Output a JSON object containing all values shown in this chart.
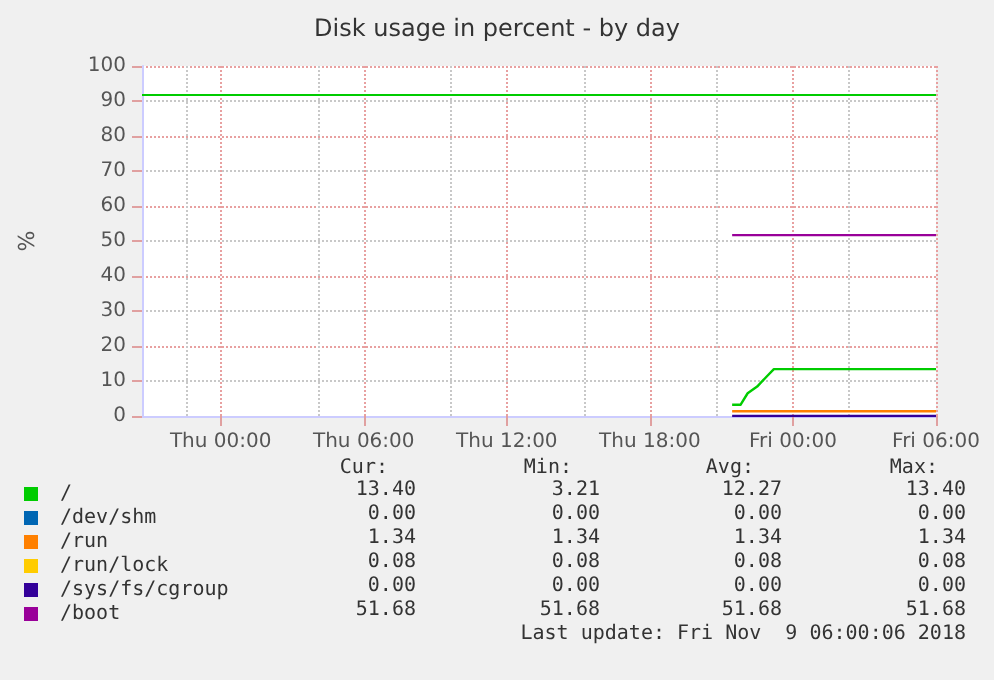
{
  "chart_data": {
    "type": "line",
    "title": "Disk usage in percent - by day",
    "ylabel": "%",
    "xlim": [
      "2018-11-07T20:42",
      "2018-11-09T06:00"
    ],
    "xticks": [
      {
        "value": "2018-11-08T00:00",
        "label": "Thu 00:00"
      },
      {
        "value": "2018-11-08T06:00",
        "label": "Thu 06:00"
      },
      {
        "value": "2018-11-08T12:00",
        "label": "Thu 12:00"
      },
      {
        "value": "2018-11-08T18:00",
        "label": "Thu 18:00"
      },
      {
        "value": "2018-11-09T00:00",
        "label": "Fri 00:00"
      },
      {
        "value": "2018-11-09T06:00",
        "label": "Fri 06:00"
      }
    ],
    "ylim": [
      0,
      100
    ],
    "yticks": [
      0,
      10,
      20,
      30,
      40,
      50,
      60,
      70,
      80,
      90,
      100
    ],
    "grid": true,
    "legend": "bottom left",
    "marker": "none",
    "line_style": "solid",
    "series": [
      {
        "name": "/",
        "color": "#00cc00",
        "x": [
          "2018-11-08T21:27",
          "2018-11-08T21:48",
          "2018-11-08T22:06",
          "2018-11-08T22:30",
          "2018-11-08T22:54",
          "2018-11-08T23:12",
          "2018-11-09T06:00"
        ],
        "values": [
          3.21,
          3.21,
          6.5,
          8.4,
          11.3,
          13.4,
          13.4
        ]
      },
      {
        "name": "/dev/shm",
        "color": "#0066b3"
      },
      {
        "name": "/run",
        "color": "#ff8000",
        "x": [
          "2018-11-08T21:27",
          "2018-11-09T06:00"
        ],
        "values": [
          1.34,
          1.34
        ]
      },
      {
        "name": "/run/lock",
        "color": "#ffcc00"
      },
      {
        "name": "/sys/fs/cgroup",
        "color": "#330099",
        "x": [
          "2018-11-08T21:27",
          "2018-11-09T06:00"
        ],
        "values": [
          0,
          0
        ]
      },
      {
        "name": "/boot",
        "color": "#990099",
        "x": [
          "2018-11-08T21:27",
          "2018-11-09T06:00"
        ],
        "values": [
          51.68,
          51.68
        ]
      }
    ],
    "ref_lines": [
      {
        "axis": "y",
        "value": 92,
        "color": "#00cc00"
      }
    ],
    "annotations": [
      "Cur:",
      "Min:",
      "Avg:",
      "Max:",
      "13.40",
      "3.21",
      "12.27",
      "13.40",
      "0.00",
      "0.00",
      "0.00",
      "0.00",
      "1.34",
      "1.34",
      "1.34",
      "1.34",
      "0.08",
      "0.08",
      "0.08",
      "0.08",
      "0.00",
      "0.00",
      "0.00",
      "0.00",
      "51.68",
      "51.68",
      "51.68",
      "51.68",
      "Last update: Fri Nov  9 06:00:06 2018"
    ]
  }
}
